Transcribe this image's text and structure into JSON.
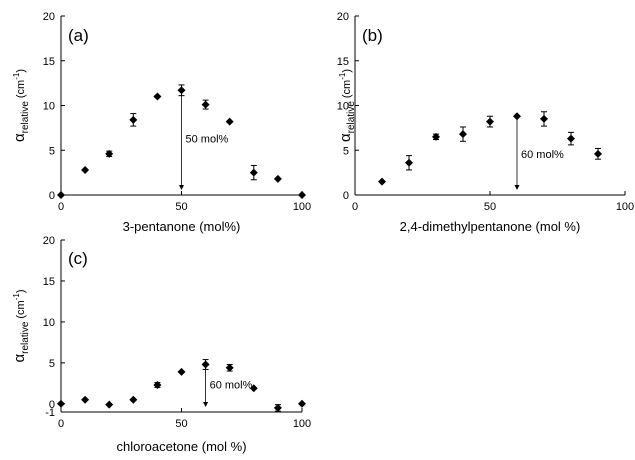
{
  "chart_data": [
    {
      "type": "scatter",
      "panel_label": "(a)",
      "xlabel": "3-pentanone (mol%)",
      "ylabel_main": "α",
      "ylabel_sub": "relative",
      "ylabel_unit": "(cm",
      "ylabel_exp": "-1",
      "ylabel_close": ")",
      "xlim": [
        0,
        100
      ],
      "ylim": [
        0,
        20
      ],
      "xticks": [
        0,
        50,
        100
      ],
      "yticks": [
        0,
        5,
        10,
        15,
        20
      ],
      "ytick_labels": [
        "0",
        "5",
        "10",
        "15",
        "20"
      ],
      "x": [
        0,
        10,
        20,
        30,
        40,
        50,
        60,
        70,
        80,
        90,
        100
      ],
      "y": [
        0,
        2.8,
        4.6,
        8.4,
        11.0,
        11.7,
        10.1,
        8.2,
        2.5,
        1.8,
        0
      ],
      "err": [
        0,
        0,
        0.3,
        0.7,
        0,
        0.6,
        0.5,
        0,
        0.8,
        0,
        0
      ],
      "annotation": {
        "text": "50 mol%",
        "x": 50
      },
      "grid": false
    },
    {
      "type": "scatter",
      "panel_label": "(b)",
      "xlabel": "2,4-dimethylpentanone (mol %)",
      "ylabel_main": "α",
      "ylabel_sub": "relative",
      "ylabel_unit": "(cm",
      "ylabel_exp": "-1",
      "ylabel_close": ")",
      "xlim": [
        0,
        100
      ],
      "ylim": [
        0,
        20
      ],
      "xticks": [
        0,
        50,
        100
      ],
      "yticks": [
        0,
        5,
        10,
        15,
        20
      ],
      "ytick_labels": [
        "0",
        "5",
        "10",
        "15",
        "20"
      ],
      "x": [
        10,
        20,
        30,
        40,
        50,
        60,
        70,
        80,
        90
      ],
      "y": [
        1.5,
        3.6,
        6.5,
        6.8,
        8.2,
        8.8,
        8.5,
        6.3,
        4.6
      ],
      "err": [
        0,
        0.8,
        0.3,
        0.8,
        0.6,
        0,
        0.8,
        0.7,
        0.6
      ],
      "annotation": {
        "text": "60 mol%",
        "x": 60
      },
      "grid": false
    },
    {
      "type": "scatter",
      "panel_label": "(c)",
      "xlabel": "chloroacetone (mol %)",
      "ylabel_main": "α",
      "ylabel_sub": "relative",
      "ylabel_unit": "(cm",
      "ylabel_exp": "-1",
      "ylabel_close": ")",
      "xlim": [
        0,
        100
      ],
      "ylim": [
        -1,
        20
      ],
      "xticks": [
        0,
        50,
        100
      ],
      "yticks": [
        -1,
        0,
        5,
        10,
        15,
        20
      ],
      "ytick_labels": [
        "-1",
        "0",
        "5",
        "10",
        "15",
        "20"
      ],
      "x": [
        0,
        10,
        20,
        30,
        40,
        50,
        60,
        70,
        80,
        90,
        100
      ],
      "y": [
        0,
        0.5,
        -0.1,
        0.5,
        2.3,
        3.9,
        4.8,
        4.4,
        1.9,
        -0.5,
        0
      ],
      "err": [
        0,
        0,
        0,
        0,
        0.3,
        0,
        0.6,
        0.4,
        0,
        0.4,
        0
      ],
      "annotation": {
        "text": "60 mol%",
        "x": 60
      },
      "grid": false
    }
  ]
}
